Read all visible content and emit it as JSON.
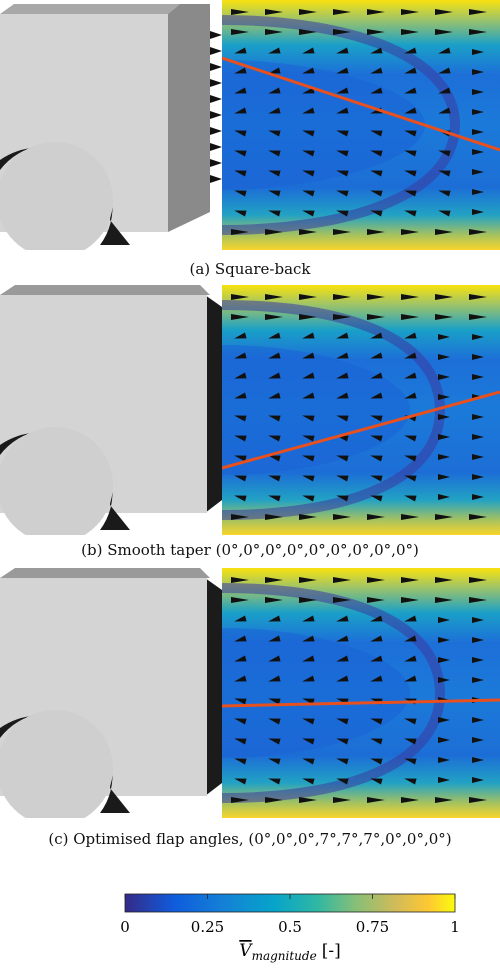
{
  "panels": [
    {
      "caption": "(a) Square-back"
    },
    {
      "caption": "(b) Smooth taper (0°,0°,0°,0°,0°,0°,0°,0°,0°)"
    },
    {
      "caption": "(c) Optimised flap angles, (0°,0°,0°,7°,7°,7°,0°,0°,0°)"
    }
  ],
  "colorbar": {
    "lim": [
      0,
      1
    ],
    "ticks": [
      0,
      0.25,
      0.5,
      0.75,
      1
    ],
    "label": {
      "symbol": "V",
      "subscript": "magnitude",
      "unit": "[-]"
    }
  }
}
